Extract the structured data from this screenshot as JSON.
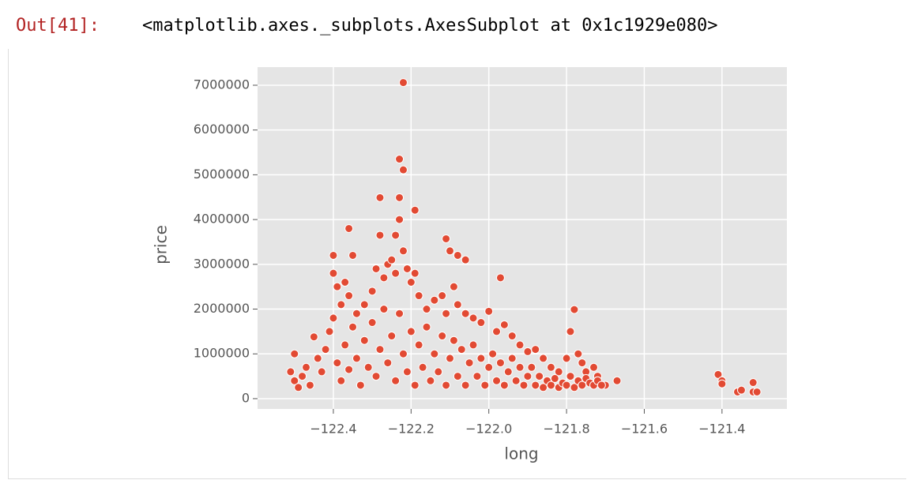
{
  "output_prompt": "Out[41]:",
  "output_text": "<matplotlib.axes._subplots.AxesSubplot at 0x1c1929e080>",
  "chart_data": {
    "type": "scatter",
    "xlabel": "long",
    "ylabel": "price",
    "color": "#E24A33",
    "grid": true,
    "xlim": [
      -122.595,
      -121.233
    ],
    "ylim": [
      -230000,
      7405000
    ],
    "xticks": [
      {
        "value": -122.4,
        "label": "−122.4"
      },
      {
        "value": -122.2,
        "label": "−122.2"
      },
      {
        "value": -122.0,
        "label": "−122.0"
      },
      {
        "value": -121.8,
        "label": "−121.8"
      },
      {
        "value": -121.6,
        "label": "−121.6"
      },
      {
        "value": -121.4,
        "label": "−121.4"
      }
    ],
    "yticks": [
      0,
      1000000,
      2000000,
      3000000,
      4000000,
      5000000,
      6000000,
      7000000
    ],
    "x": [
      -122.22,
      -122.23,
      -122.22,
      -122.19,
      -122.28,
      -122.23,
      -122.23,
      -122.36,
      -122.24,
      -122.28,
      -122.11,
      -122.4,
      -122.35,
      -122.1,
      -122.08,
      -122.06,
      -121.97,
      -121.78,
      -121.79,
      -122.5,
      -122.45,
      -121.41,
      -121.4,
      -121.4,
      -121.36,
      -121.35,
      -121.32,
      -121.32,
      -121.31,
      -121.67,
      -121.7,
      -121.73,
      -121.75,
      -122.4,
      -122.39,
      -122.38,
      -122.37,
      -122.36,
      -122.34,
      -122.32,
      -122.3,
      -122.29,
      -122.27,
      -122.26,
      -122.25,
      -122.24,
      -122.22,
      -122.21,
      -122.2,
      -122.19,
      -122.18,
      -122.16,
      -122.14,
      -122.12,
      -122.11,
      -122.09,
      -122.08,
      -122.06,
      -122.04,
      -122.02,
      -122.0,
      -121.98,
      -121.96,
      -121.94,
      -121.92,
      -121.9,
      -121.88,
      -121.86,
      -121.84,
      -121.82,
      -121.8,
      -121.77,
      -121.76,
      -121.72,
      -122.51,
      -122.5,
      -122.49,
      -122.48,
      -122.47,
      -122.46,
      -122.44,
      -122.43,
      -122.42,
      -122.41,
      -122.4,
      -122.39,
      -122.38,
      -122.37,
      -122.36,
      -122.35,
      -122.34,
      -122.33,
      -122.32,
      -122.31,
      -122.3,
      -122.29,
      -122.28,
      -122.27,
      -122.26,
      -122.25,
      -122.24,
      -122.23,
      -122.22,
      -122.21,
      -122.2,
      -122.19,
      -122.18,
      -122.17,
      -122.16,
      -122.15,
      -122.14,
      -122.13,
      -122.12,
      -122.11,
      -122.1,
      -122.09,
      -122.08,
      -122.07,
      -122.06,
      -122.05,
      -122.04,
      -122.03,
      -122.02,
      -122.01,
      -122.0,
      -121.99,
      -121.98,
      -121.97,
      -121.96,
      -121.95,
      -121.94,
      -121.93,
      -121.92,
      -121.91,
      -121.9,
      -121.89,
      -121.88,
      -121.87,
      -121.86,
      -121.85,
      -121.84,
      -121.83,
      -121.82,
      -121.81,
      -121.8,
      -121.79,
      -121.78,
      -121.77,
      -121.76,
      -121.75,
      -121.74,
      -121.73,
      -121.72,
      -121.71
    ],
    "values": [
      7060000,
      5350000,
      5110000,
      4210000,
      4490000,
      4490000,
      4000000,
      3800000,
      3650000,
      3650000,
      3570000,
      3200000,
      3200000,
      3300000,
      3200000,
      3100000,
      2700000,
      1990000,
      1500000,
      1000000,
      1380000,
      540000,
      400000,
      330000,
      150000,
      190000,
      360000,
      150000,
      150000,
      400000,
      300000,
      700000,
      600000,
      2800000,
      2500000,
      2100000,
      2600000,
      2300000,
      1900000,
      2100000,
      2400000,
      2900000,
      2700000,
      3000000,
      3100000,
      2800000,
      3300000,
      2900000,
      2600000,
      2800000,
      2300000,
      2000000,
      2200000,
      2300000,
      1900000,
      2500000,
      2100000,
      1900000,
      1800000,
      1700000,
      1950000,
      1500000,
      1650000,
      1400000,
      1200000,
      1050000,
      1100000,
      900000,
      700000,
      600000,
      900000,
      1000000,
      800000,
      500000,
      600000,
      400000,
      250000,
      500000,
      700000,
      300000,
      900000,
      600000,
      1100000,
      1500000,
      1800000,
      800000,
      400000,
      1200000,
      650000,
      1600000,
      900000,
      300000,
      1300000,
      700000,
      1700000,
      500000,
      1100000,
      2000000,
      800000,
      1400000,
      400000,
      1900000,
      1000000,
      600000,
      1500000,
      300000,
      1200000,
      700000,
      1600000,
      400000,
      1000000,
      600000,
      1400000,
      300000,
      900000,
      1300000,
      500000,
      1100000,
      300000,
      800000,
      1200000,
      500000,
      900000,
      300000,
      700000,
      1000000,
      400000,
      800000,
      300000,
      600000,
      900000,
      400000,
      700000,
      300000,
      500000,
      700000,
      300000,
      500000,
      250000,
      400000,
      300000,
      450000,
      250000,
      350000,
      300000,
      500000,
      250000,
      400000,
      300000,
      450000,
      350000,
      300000,
      400000,
      300000
    ]
  }
}
